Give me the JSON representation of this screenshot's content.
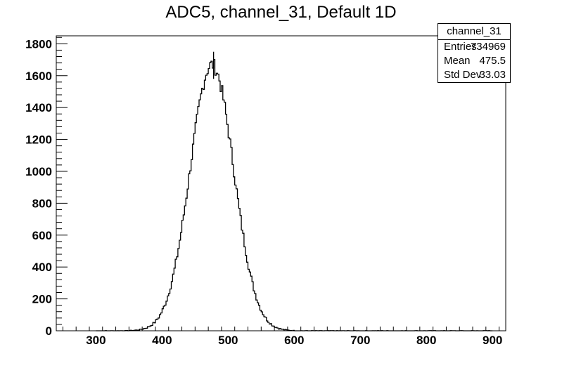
{
  "title": "ADC5, channel_31, Default 1D",
  "stats": {
    "name": "channel_31",
    "rows": [
      {
        "label": "Entries",
        "value": "734969"
      },
      {
        "label": "Mean",
        "value": "475.5"
      },
      {
        "label": "Std Dev",
        "value": "33.03"
      }
    ]
  },
  "chart_data": {
    "type": "histogram",
    "title": "ADC5, channel_31, Default 1D",
    "xlabel": "",
    "ylabel": "",
    "xlim": [
      240,
      920
    ],
    "ylim": [
      0,
      1850
    ],
    "x_ticks": [
      300,
      400,
      500,
      600,
      700,
      800,
      900
    ],
    "y_ticks": [
      0,
      200,
      400,
      600,
      800,
      1000,
      1200,
      1400,
      1600,
      1800
    ],
    "bin_width": 2,
    "entries": 734969,
    "mean": 475.5,
    "std_dev": 33.03,
    "peak_value": 1750,
    "line_color": "#000000",
    "grid": false
  }
}
